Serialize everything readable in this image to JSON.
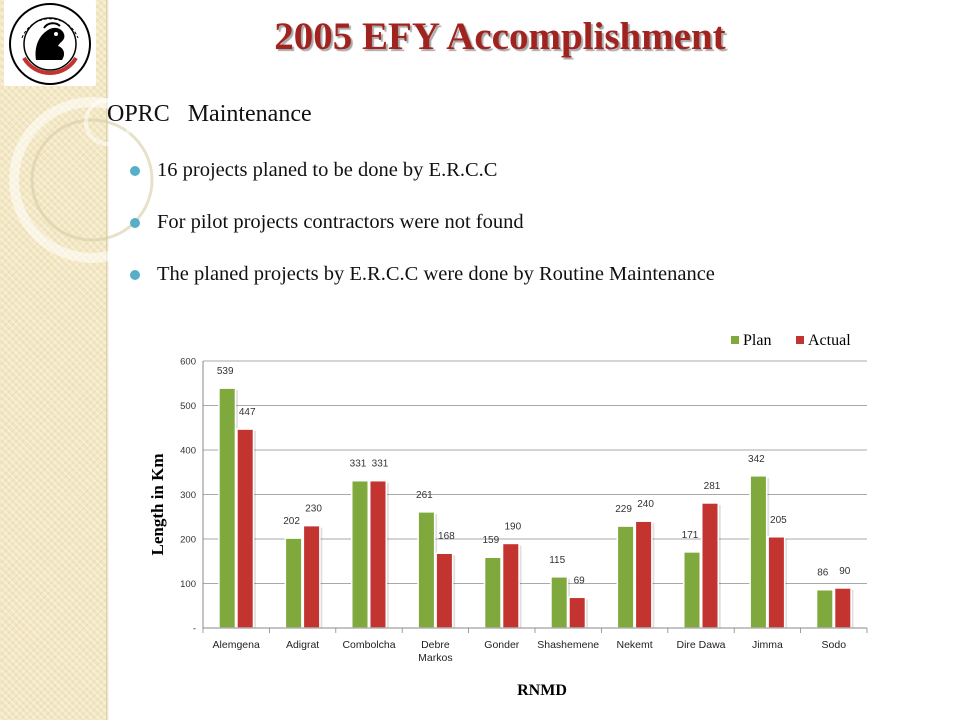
{
  "slide": {
    "title": "2005 EFY Accomplishment",
    "subtitle": "OPRC   Maintenance",
    "bullets": [
      "16 projects planed to be done by E.R.C.C",
      "For pilot projects contractors were not found",
      "The planed projects by E.R.C.C were done by Routine Maintenance"
    ],
    "logo_text": "ETHIOPIAN ROADS AUTHORITY"
  },
  "colors": {
    "plan": "#80a93d",
    "actual": "#c3332f",
    "title": "#a0231f",
    "bullet": "#57afc7"
  },
  "chart_data": {
    "type": "bar",
    "categories": [
      "Alemgena",
      "Adigrat",
      "Combolcha",
      "Debre Markos",
      "Gonder",
      "Shashemene",
      "Nekemt",
      "Dire Dawa",
      "Jimma",
      "Sodo"
    ],
    "series": [
      {
        "name": "Plan",
        "values": [
          539,
          202,
          331,
          261,
          159,
          115,
          229,
          171,
          342,
          86
        ]
      },
      {
        "name": "Actual",
        "values": [
          447,
          230,
          331,
          168,
          190,
          69,
          240,
          281,
          205,
          90
        ]
      }
    ],
    "title": "",
    "xlabel": "RNMD",
    "ylabel": "Length in Km",
    "ylim": [
      0,
      600
    ],
    "yticks": [
      "-",
      "100",
      "200",
      "300",
      "400",
      "500",
      "600"
    ],
    "grid": true,
    "legend": "top-right"
  }
}
